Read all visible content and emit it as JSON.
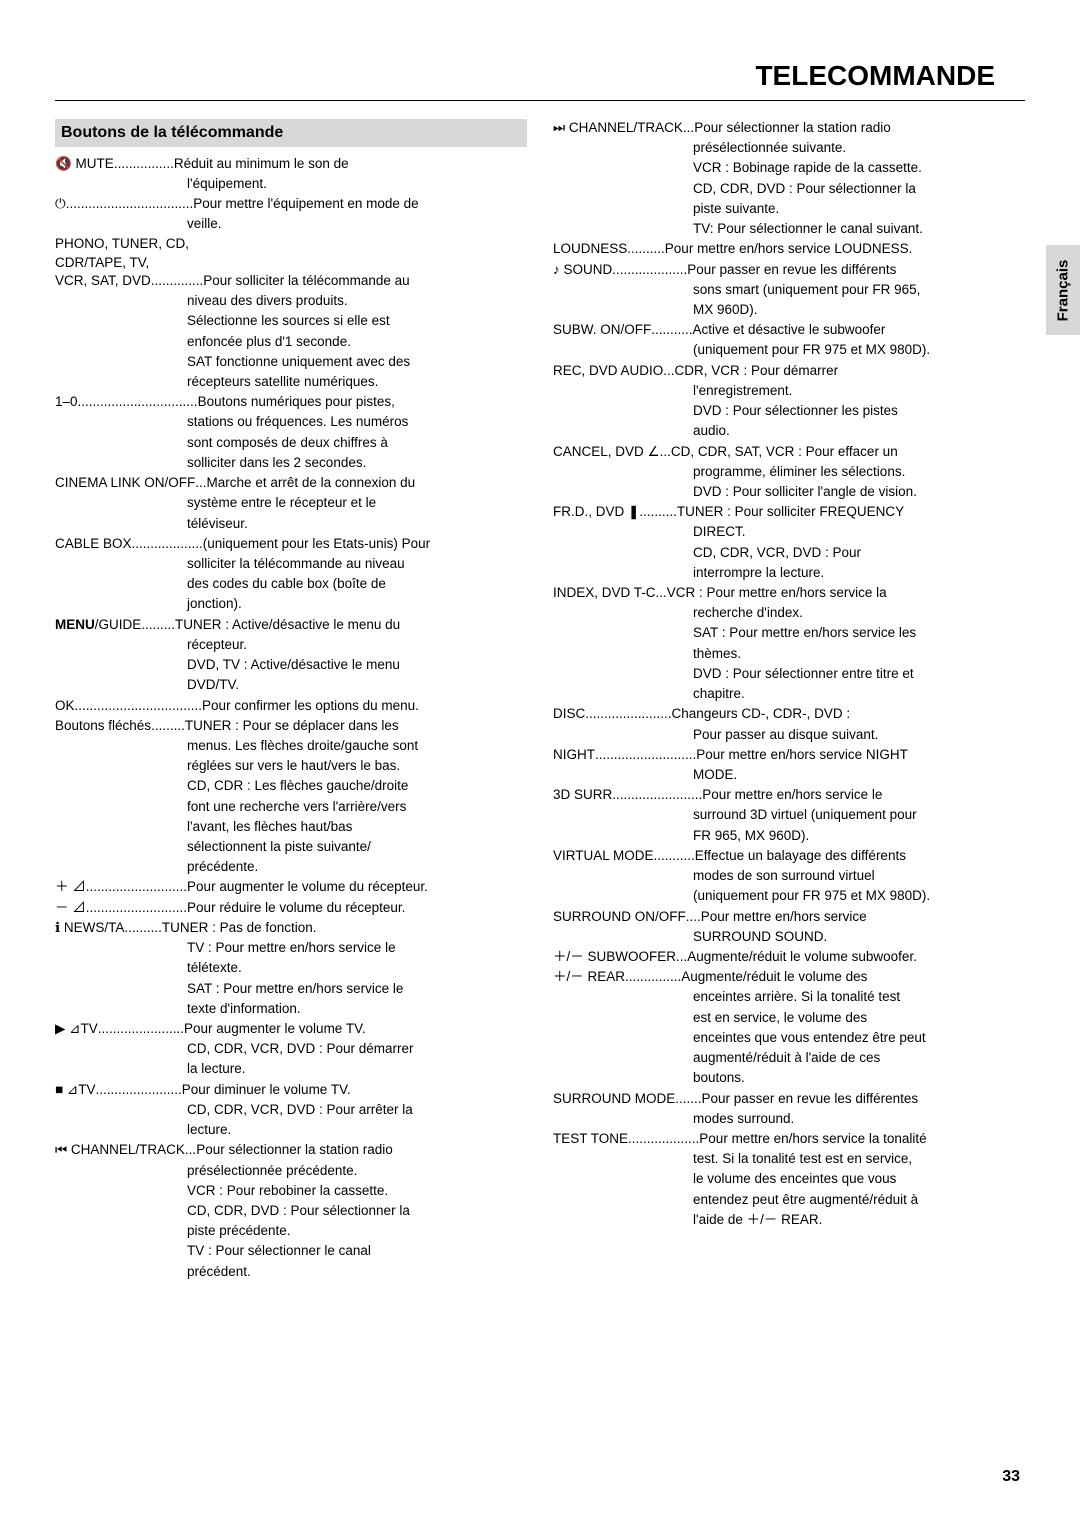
{
  "page_title": "TELECOMMANDE",
  "section_header": "Boutons de la télécommande",
  "lang_tab": "Français",
  "page_num": "33",
  "left": [
    {
      "label": "🔇 MUTE",
      "dots": "................",
      "desc": "Réduit au minimum le son de"
    },
    {
      "cont": "l'équipement."
    },
    {
      "label": "⏻",
      "dots": "..................................",
      "desc": "Pour mettre l'équipement en mode de"
    },
    {
      "cont": "veille."
    },
    {
      "plain": "PHONO, TUNER, CD,"
    },
    {
      "plain": "CDR/TAPE, TV,"
    },
    {
      "label": "VCR, SAT, DVD",
      "dots": "..............",
      "desc": "Pour solliciter la télécommande au"
    },
    {
      "cont": "niveau des divers produits."
    },
    {
      "cont": "Sélectionne les sources si elle est"
    },
    {
      "cont": "enfoncée plus d'1 seconde."
    },
    {
      "cont": "SAT fonctionne uniquement avec des"
    },
    {
      "cont": "récepteurs satellite numériques."
    },
    {
      "label": "1–0",
      "dots": "................................",
      "desc": "Boutons numériques pour pistes,"
    },
    {
      "cont": "stations ou fréquences. Les numéros"
    },
    {
      "cont": "sont composés de deux chiffres à"
    },
    {
      "cont": "solliciter dans les 2 secondes."
    },
    {
      "label": "CINEMA LINK ON/OFF",
      "dots": "...",
      "desc": "Marche et arrêt de la connexion du"
    },
    {
      "cont": "système entre le récepteur et le"
    },
    {
      "cont": "téléviseur."
    },
    {
      "label": "CABLE BOX",
      "dots": "...................",
      "desc": "(uniquement pour les Etats-unis) Pour"
    },
    {
      "cont": "solliciter la télécommande au niveau"
    },
    {
      "cont": "des codes du cable box (boîte de"
    },
    {
      "cont": "jonction)."
    },
    {
      "label": "<b>MENU</b>/GUIDE",
      "dots": ".........",
      "desc": "TUNER : Active/désactive le menu du"
    },
    {
      "cont": "récepteur."
    },
    {
      "cont": "DVD, TV : Active/désactive le menu"
    },
    {
      "cont": "DVD/TV."
    },
    {
      "label": "OK",
      "dots": "..................................",
      "desc": "Pour confirmer les options du menu."
    },
    {
      "label": "Boutons fléchés",
      "dots": ".........",
      "desc": "TUNER : Pour se déplacer dans les"
    },
    {
      "cont": "menus. Les flèches droite/gauche sont"
    },
    {
      "cont": "réglées sur vers le haut/vers le bas."
    },
    {
      "cont": "CD, CDR : Les flèches gauche/droite"
    },
    {
      "cont": "font une recherche vers l'arrière/vers"
    },
    {
      "cont": "l'avant, les flèches haut/bas"
    },
    {
      "cont": "sélectionnent la piste suivante/"
    },
    {
      "cont": "précédente."
    },
    {
      "label": "＋ ⊿",
      "dots": "...........................",
      "desc": "Pour augmenter le volume du récepteur."
    },
    {
      "label": "－ ⊿",
      "dots": "...........................",
      "desc": "Pour réduire le volume du récepteur."
    },
    {
      "label": "ℹ  NEWS/TA",
      "dots": "..........",
      "desc": "TUNER : Pas de fonction."
    },
    {
      "cont": "TV : Pour mettre en/hors service le"
    },
    {
      "cont": "télétexte."
    },
    {
      "cont": "SAT : Pour mettre en/hors service le"
    },
    {
      "cont": "texte d'information."
    },
    {
      "label": "▶ ⊿TV",
      "dots": ".......................",
      "desc": "Pour augmenter le volume TV."
    },
    {
      "cont": "CD, CDR, VCR, DVD : Pour démarrer"
    },
    {
      "cont": "la lecture."
    },
    {
      "label": "■ ⊿TV",
      "dots": ".......................",
      "desc": "Pour diminuer le volume TV."
    },
    {
      "cont": "CD, CDR, VCR, DVD : Pour arrêter la"
    },
    {
      "cont": "lecture."
    },
    {
      "label": "⏮ CHANNEL/TRACK",
      "dots": "...",
      "desc": "Pour sélectionner la station radio"
    },
    {
      "cont": "présélectionnée précédente."
    },
    {
      "cont": "VCR : Pour rebobiner la cassette."
    },
    {
      "cont": "CD, CDR, DVD : Pour sélectionner la"
    },
    {
      "cont": "piste précédente."
    },
    {
      "cont": "TV : Pour sélectionner le canal"
    },
    {
      "cont": "précédent."
    }
  ],
  "right": [
    {
      "label": "⏭ CHANNEL/TRACK",
      "dots": "...",
      "desc": "Pour sélectionner la station radio"
    },
    {
      "cont": "présélectionnée suivante."
    },
    {
      "cont": "VCR : Bobinage rapide de la cassette."
    },
    {
      "cont": "CD, CDR, DVD : Pour sélectionner la"
    },
    {
      "cont": "piste suivante."
    },
    {
      "cont": "TV: Pour sélectionner le canal suivant."
    },
    {
      "label": "LOUDNESS",
      "dots": "..........",
      "desc": "Pour mettre en/hors service LOUDNESS."
    },
    {
      "label": "♪ SOUND",
      "dots": "....................",
      "desc": "Pour passer en revue les différents"
    },
    {
      "cont": "sons smart (uniquement pour FR 965,"
    },
    {
      "cont": "MX 960D)."
    },
    {
      "label": "SUBW. ON/OFF",
      "dots": "...........",
      "desc": "Active et désactive le subwoofer"
    },
    {
      "cont": "(uniquement pour FR 975 et MX 980D)."
    },
    {
      "label": "REC, DVD AUDIO",
      "dots": "...",
      "desc": "CDR, VCR : Pour démarrer"
    },
    {
      "cont": "l'enregistrement."
    },
    {
      "cont": "DVD : Pour sélectionner les pistes"
    },
    {
      "cont": "audio."
    },
    {
      "label": "CANCEL, DVD ∠",
      "dots": "   ",
      "desc": "...CD, CDR, SAT, VCR : Pour effacer un"
    },
    {
      "cont": "programme, éliminer les sélections."
    },
    {
      "cont": "DVD : Pour solliciter l'angle de vision."
    },
    {
      "label": "FR.D., DVD ❚",
      "dots": "..........",
      "desc": "TUNER : Pour solliciter FREQUENCY"
    },
    {
      "cont": "DIRECT."
    },
    {
      "cont": "CD, CDR, VCR, DVD : Pour"
    },
    {
      "cont": "interrompre la lecture."
    },
    {
      "label": "INDEX, DVD T-C",
      "dots": "...",
      "desc": "VCR : Pour mettre en/hors service la"
    },
    {
      "cont": "recherche d'index."
    },
    {
      "cont": "SAT : Pour mettre en/hors service les"
    },
    {
      "cont": "thèmes."
    },
    {
      "cont": "DVD : Pour sélectionner entre titre et"
    },
    {
      "cont": "chapitre."
    },
    {
      "label": "DISC",
      "dots": ".......................",
      "desc": "Changeurs CD-, CDR-, DVD :"
    },
    {
      "cont": "Pour passer au disque suivant."
    },
    {
      "label": "NIGHT",
      "dots": "...........................",
      "desc": "Pour mettre en/hors service NIGHT"
    },
    {
      "cont": "MODE."
    },
    {
      "label": "3D SURR.",
      "dots": ".......................",
      "desc": "Pour mettre en/hors service le"
    },
    {
      "cont": "surround 3D virtuel (uniquement pour"
    },
    {
      "cont": "FR 965, MX 960D)."
    },
    {
      "label": "VIRTUAL MODE",
      "dots": "...........",
      "desc": "Effectue un balayage des différents"
    },
    {
      "cont": "modes de son surround virtuel"
    },
    {
      "cont": "(uniquement pour FR 975 et MX 980D)."
    },
    {
      "label": "SURROUND ON/OFF",
      "dots": "....",
      "desc": "Pour mettre en/hors service"
    },
    {
      "cont": "SURROUND SOUND."
    },
    {
      "label": "＋/－ SUBWOOFER",
      "dots": "...",
      "desc": "Augmente/réduit le volume subwoofer."
    },
    {
      "label": "＋/－ REAR",
      "dots": "...............",
      "desc": "Augmente/réduit le volume des"
    },
    {
      "cont": "enceintes arrière. Si la tonalité test"
    },
    {
      "cont": "est en service, le volume des"
    },
    {
      "cont": "enceintes que vous entendez être peut"
    },
    {
      "cont": "augmenté/réduit à l'aide de ces"
    },
    {
      "cont": "boutons."
    },
    {
      "label": "SURROUND MODE",
      "dots": ".......",
      "desc": "Pour passer en revue les différentes"
    },
    {
      "cont": "modes surround."
    },
    {
      "label": "TEST TONE",
      "dots": "...................",
      "desc": "Pour mettre en/hors service la tonalité"
    },
    {
      "cont": "test. Si la tonalité test est en service,"
    },
    {
      "cont": "le volume des enceintes que vous"
    },
    {
      "cont": "entendez peut être augmenté/réduit à"
    },
    {
      "cont": "l'aide de ＋/－ REAR."
    }
  ]
}
